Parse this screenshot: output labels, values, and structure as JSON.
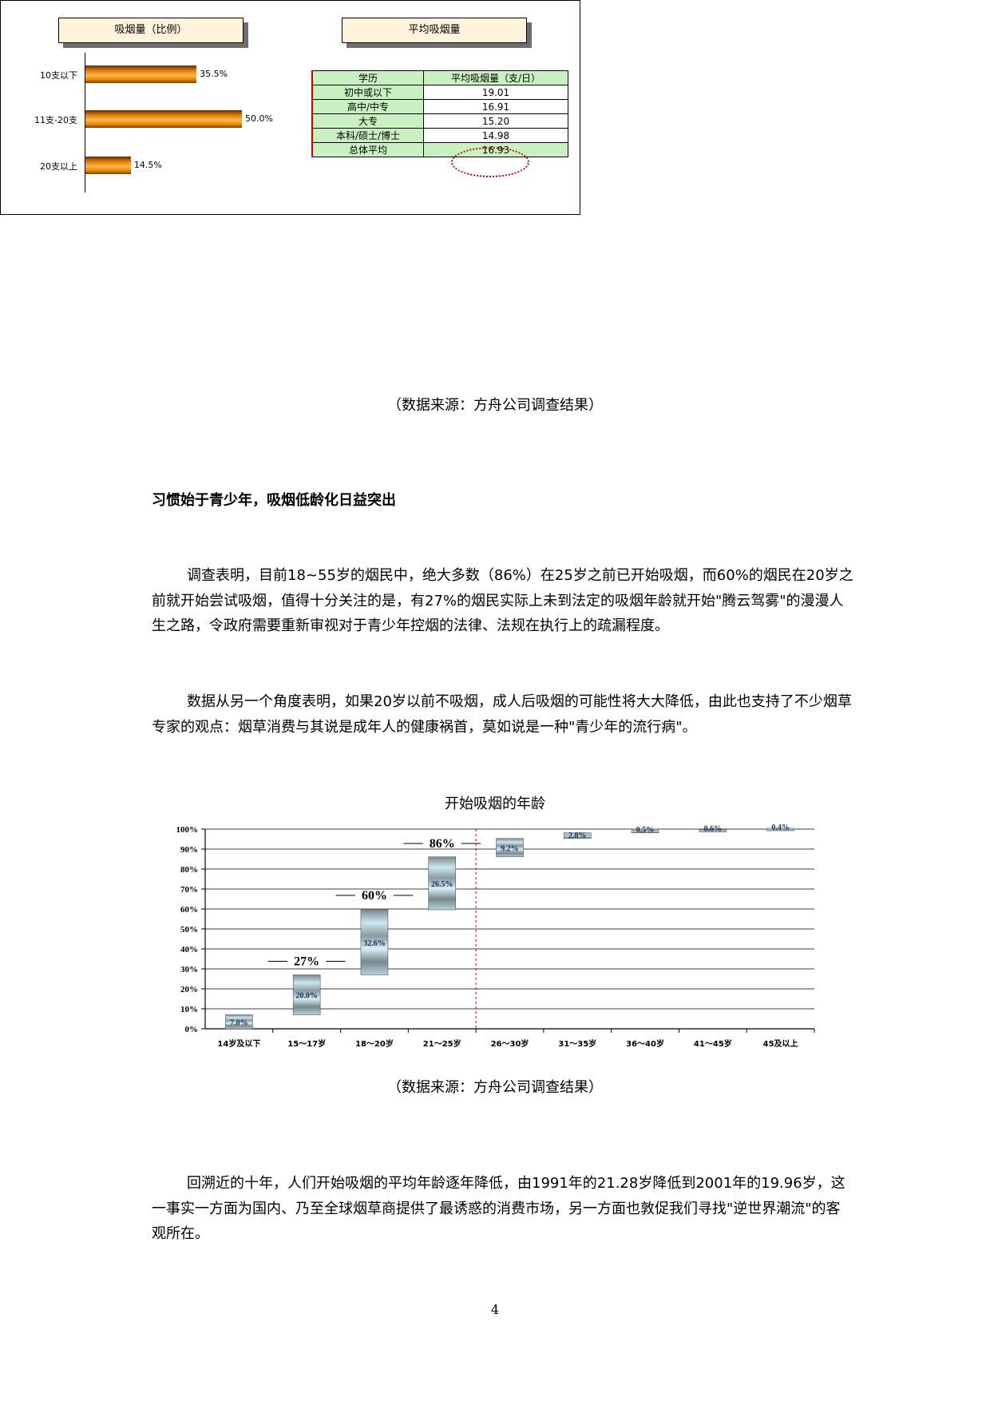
{
  "figure1": {
    "bar_chart_title": "吸烟量（比例）",
    "table_title": "平均吸烟量",
    "chart_data": {
      "type": "bar",
      "orientation": "horizontal",
      "categories": [
        "10支以下",
        "11支-20支",
        "20支以上"
      ],
      "values": [
        35.5,
        50.0,
        14.5
      ],
      "value_labels": [
        "35.5%",
        "50.0%",
        "14.5%"
      ],
      "title": "吸烟量（比例）",
      "xlim": [
        0,
        100
      ]
    },
    "table": {
      "headers": [
        "学历",
        "平均吸烟量（支/日）"
      ],
      "rows": [
        [
          "初中或以下",
          "19.01"
        ],
        [
          "高中/中专",
          "16.91"
        ],
        [
          "大专",
          "15.20"
        ],
        [
          "本科/硕士/博士",
          "14.98"
        ],
        [
          "总体平均",
          "16.93"
        ]
      ],
      "highlight_color": "#d00000"
    }
  },
  "caption1": "（数据来源：方舟公司调查结果）",
  "heading": "习惯始于青少年，吸烟低龄化日益突出",
  "paragraphs": [
    "调查表明，目前18~55岁的烟民中，绝大多数（86%）在25岁之前已开始吸烟，而60%的烟民在20岁之前就开始尝试吸烟，值得十分关注的是，有27%的烟民实际上未到法定的吸烟年龄就开始\"腾云驾雾\"的漫漫人生之路，令政府需要重新审视对于青少年控烟的法律、法规在执行上的疏漏程度。",
    "数据从另一个角度表明，如果20岁以前不吸烟，成人后吸烟的可能性将大大降低，由此也支持了不少烟草专家的观点：烟草消费与其说是成年人的健康祸首，莫如说是一种\"青少年的流行病\"。"
  ],
  "figure2": {
    "title": "开始吸烟的年龄",
    "chart_data": {
      "type": "bar",
      "subtype": "waterfall",
      "title": "开始吸烟的年龄",
      "categories": [
        "14岁及以下",
        "15～17岁",
        "18～20岁",
        "21～25岁",
        "26～30岁",
        "31～35岁",
        "36～40岁",
        "41～45岁",
        "45及以上"
      ],
      "values": [
        7.0,
        20.0,
        32.6,
        26.5,
        9.2,
        2.8,
        0.5,
        0.6,
        0.4
      ],
      "value_labels": [
        "7.0%",
        "20.0%",
        "32.6%",
        "26.5%",
        "9.2%",
        "2.8%",
        "0.5%",
        "0.6%",
        "0.4%"
      ],
      "cumulative_callouts": [
        {
          "category": "15～17岁",
          "label": "27%",
          "value": 27
        },
        {
          "category": "18～20岁",
          "label": "60%",
          "value": 60
        },
        {
          "category": "21～25岁",
          "label": "86%",
          "value": 86
        }
      ],
      "yticks": [
        "0%",
        "10%",
        "20%",
        "30%",
        "40%",
        "50%",
        "60%",
        "70%",
        "80%",
        "90%",
        "100%"
      ],
      "ylim": [
        0,
        100
      ],
      "grid": true,
      "divider_after_category": "21～25岁",
      "divider_color": "#d00000"
    }
  },
  "caption2": "（数据来源：方舟公司调查结果）",
  "paragraph3": "回溯近的十年，人们开始吸烟的平均年龄逐年降低，由1991年的21.28岁降低到2001年的19.96岁，这一事实一方面为国内、乃至全球烟草商提供了最诱惑的消费市场，另一方面也敦促我们寻找\"逆世界潮流\"的客观所在。",
  "page_number": "4"
}
